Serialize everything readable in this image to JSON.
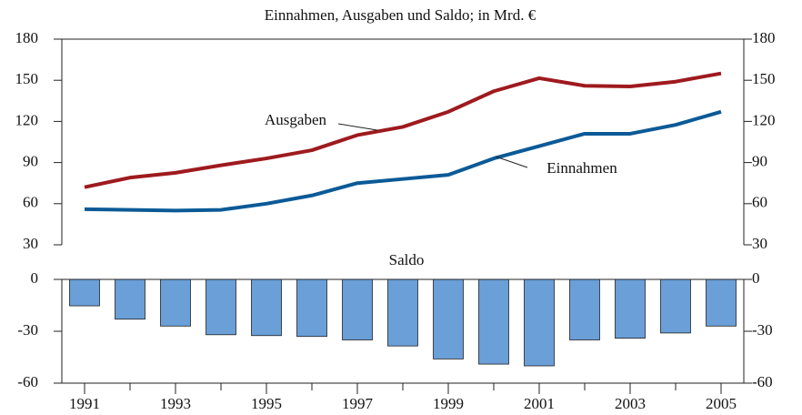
{
  "chart_data": [
    {
      "type": "line",
      "title": "Einnahmen, Ausgaben und Saldo; in Mrd. €",
      "x": [
        1991,
        1992,
        1993,
        1994,
        1995,
        1996,
        1997,
        1998,
        1999,
        2000,
        2001,
        2002,
        2003,
        2004,
        2005
      ],
      "xlim": [
        1990.5,
        2005.5
      ],
      "ylim": [
        30,
        180
      ],
      "yticks": [
        30,
        60,
        90,
        120,
        150,
        180
      ],
      "series": [
        {
          "name": "Ausgaben",
          "color": "#9e1a1e",
          "values": [
            72,
            79,
            82.5,
            88,
            93,
            99,
            110,
            116,
            127,
            142,
            151.5,
            146,
            145.5,
            149,
            155
          ]
        },
        {
          "name": "Einnahmen",
          "color": "#0b5a97",
          "values": [
            56,
            55.5,
            55,
            55.5,
            60,
            66,
            75,
            78,
            81,
            93,
            102,
            111,
            111,
            117.5,
            127
          ]
        }
      ]
    },
    {
      "type": "bar",
      "title": "Saldo",
      "x": [
        1991,
        1992,
        1993,
        1994,
        1995,
        1996,
        1997,
        1998,
        1999,
        2000,
        2001,
        2002,
        2003,
        2004,
        2005
      ],
      "xlim": [
        1990.5,
        2005.5
      ],
      "xticks": [
        1991,
        1993,
        1995,
        1997,
        1999,
        2001,
        2003,
        2005
      ],
      "ylim": [
        -60,
        0
      ],
      "yticks": [
        -60,
        -30,
        0
      ],
      "color": "#6a9fd8",
      "values": [
        -15.3,
        -23,
        -27,
        -32,
        -32.5,
        -33,
        -35,
        -38.5,
        -46,
        -49,
        -50,
        -35,
        -34,
        -31,
        -27
      ]
    }
  ]
}
